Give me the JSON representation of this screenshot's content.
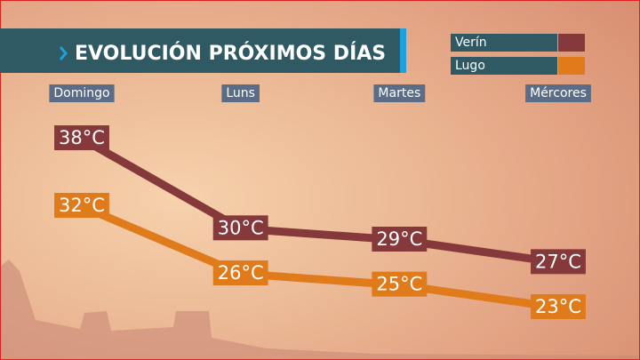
{
  "chart_data": {
    "type": "line",
    "title": "EVOLUCIÓN PRÓXIMOS DÍAS",
    "categories": [
      "Domingo",
      "Luns",
      "Martes",
      "Mércores"
    ],
    "series": [
      {
        "name": "Verín",
        "color": "#86393a",
        "values": [
          38,
          30,
          29,
          27
        ],
        "value_labels": [
          "38°C",
          "30°C",
          "29°C",
          "27°C"
        ]
      },
      {
        "name": "Lugo",
        "color": "#e07b1c",
        "values": [
          32,
          26,
          25,
          23
        ],
        "value_labels": [
          "32°C",
          "26°C",
          "25°C",
          "23°C"
        ]
      }
    ]
  }
}
